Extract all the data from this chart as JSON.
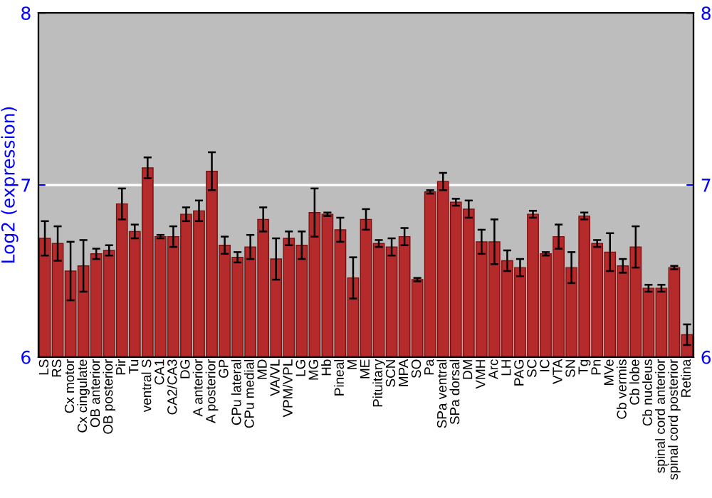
{
  "chart_data": {
    "type": "bar",
    "ylabel": "Log2 (expression)",
    "categories": [
      "LS",
      "RS",
      "Cx motor",
      "Cx cingulate",
      "OB anterior",
      "OB posterior",
      "Pir",
      "Tu",
      "ventral S",
      "CA1",
      "CA2/CA3",
      "DG",
      "A anterior",
      "A posterior",
      "GP",
      "CPu lateral",
      "CPu medial",
      "MD",
      "VA/VL",
      "VPM/VPL",
      "LG",
      "MG",
      "Hb",
      "Pineal",
      "M",
      "ME",
      "Pituitary",
      "SCN",
      "MPA",
      "SO",
      "Pa",
      "SPa ventral",
      "SPa dorsal",
      "DM",
      "VMH",
      "Arc",
      "LH",
      "PAG",
      "SC",
      "IC",
      "VTA",
      "SN",
      "Tg",
      "Pn",
      "MVe",
      "Cb vermis",
      "Cb lobe",
      "Cb nucleus",
      "spinal cord anterior",
      "spinal cord posterior",
      "Retina"
    ],
    "values": [
      6.69,
      6.66,
      6.5,
      6.53,
      6.6,
      6.62,
      6.89,
      6.73,
      7.1,
      6.7,
      6.7,
      6.83,
      6.85,
      7.08,
      6.65,
      6.58,
      6.64,
      6.8,
      6.57,
      6.69,
      6.65,
      6.84,
      6.83,
      6.74,
      6.46,
      6.8,
      6.66,
      6.64,
      6.7,
      6.45,
      6.96,
      7.02,
      6.9,
      6.86,
      6.67,
      6.67,
      6.56,
      6.52,
      6.83,
      6.6,
      6.7,
      6.52,
      6.82,
      6.66,
      6.61,
      6.53,
      6.64,
      6.4,
      6.4,
      6.52,
      6.13
    ],
    "errors": [
      0.1,
      0.1,
      0.17,
      0.15,
      0.03,
      0.03,
      0.09,
      0.04,
      0.06,
      0.01,
      0.06,
      0.04,
      0.06,
      0.11,
      0.05,
      0.03,
      0.07,
      0.07,
      0.12,
      0.04,
      0.08,
      0.14,
      0.01,
      0.07,
      0.12,
      0.06,
      0.02,
      0.05,
      0.05,
      0.01,
      0.01,
      0.05,
      0.02,
      0.05,
      0.07,
      0.13,
      0.06,
      0.05,
      0.02,
      0.01,
      0.07,
      0.09,
      0.02,
      0.02,
      0.11,
      0.04,
      0.12,
      0.02,
      0.02,
      0.01,
      0.06
    ],
    "color": "#b52a2a",
    "ylim": [
      6,
      8
    ],
    "yticks": [
      6,
      7,
      8
    ],
    "y2lim": [
      6,
      8
    ],
    "y2ticks": [
      6,
      7,
      8
    ],
    "grid": "y"
  }
}
